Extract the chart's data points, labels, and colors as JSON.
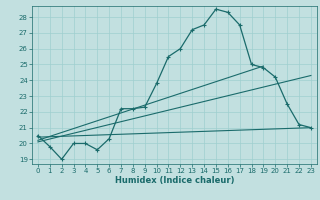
{
  "xlabel": "Humidex (Indice chaleur)",
  "bg_color": "#c2e0e0",
  "grid_color": "#9fcfcf",
  "line_color": "#1a6b6b",
  "xlim": [
    -0.5,
    23.5
  ],
  "ylim": [
    18.7,
    28.7
  ],
  "xticks": [
    0,
    1,
    2,
    3,
    4,
    5,
    6,
    7,
    8,
    9,
    10,
    11,
    12,
    13,
    14,
    15,
    16,
    17,
    18,
    19,
    20,
    21,
    22,
    23
  ],
  "yticks": [
    19,
    20,
    21,
    22,
    23,
    24,
    25,
    26,
    27,
    28
  ],
  "main_line": [
    [
      0,
      20.5
    ],
    [
      1,
      19.8
    ],
    [
      2,
      19.0
    ],
    [
      3,
      20.0
    ],
    [
      4,
      20.0
    ],
    [
      5,
      19.6
    ],
    [
      6,
      20.3
    ],
    [
      7,
      22.2
    ],
    [
      8,
      22.2
    ],
    [
      9,
      22.3
    ],
    [
      10,
      23.8
    ],
    [
      11,
      25.5
    ],
    [
      12,
      26.0
    ],
    [
      13,
      27.2
    ],
    [
      14,
      27.5
    ],
    [
      15,
      28.5
    ],
    [
      16,
      28.3
    ],
    [
      17,
      27.5
    ],
    [
      18,
      25.0
    ],
    [
      19,
      24.8
    ],
    [
      20,
      24.2
    ],
    [
      21,
      22.5
    ],
    [
      22,
      21.2
    ],
    [
      23,
      21.0
    ]
  ],
  "trend_line1": [
    [
      0,
      20.4
    ],
    [
      23,
      21.0
    ]
  ],
  "trend_line2": [
    [
      0,
      20.2
    ],
    [
      19,
      24.9
    ]
  ],
  "trend_line3": [
    [
      0,
      20.1
    ],
    [
      23,
      24.3
    ]
  ]
}
